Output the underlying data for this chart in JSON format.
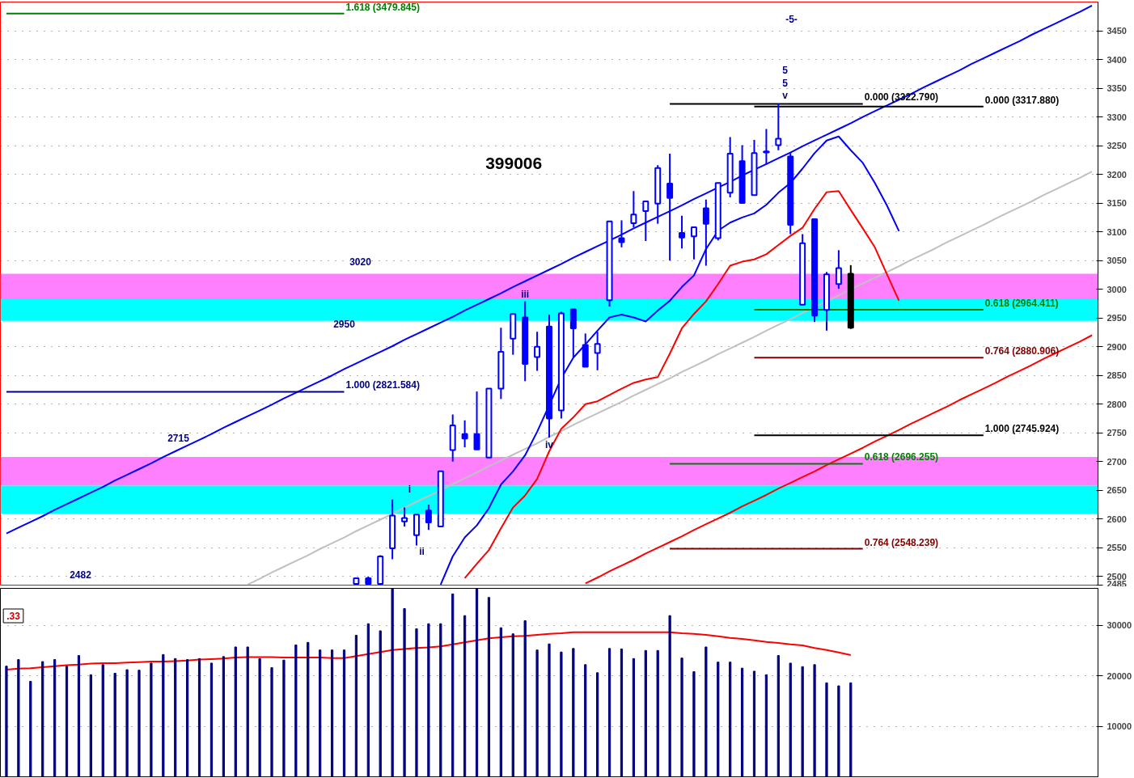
{
  "chart_data": [
    {
      "type": "candlestick",
      "title": "399006",
      "categories": [
        null,
        null,
        null,
        null,
        null,
        null,
        null,
        null,
        null,
        null,
        null,
        null,
        null,
        null,
        null,
        null,
        null,
        null,
        null,
        null,
        null,
        null,
        null,
        null,
        null,
        null,
        null,
        null,
        null,
        null,
        null,
        null,
        null,
        null,
        null,
        null,
        null,
        null,
        null,
        null,
        null,
        null,
        null,
        null,
        null,
        null,
        null,
        null,
        null,
        null,
        null,
        null,
        null,
        null,
        null,
        null,
        null,
        null,
        null,
        null,
        null,
        null,
        null,
        null,
        null,
        null,
        null,
        null,
        null,
        null,
        null,
        null,
        null,
        null,
        null,
        null,
        null,
        null,
        null,
        null,
        null,
        null,
        null,
        null,
        null,
        null,
        null,
        null,
        null,
        null,
        null
      ],
      "ohlc": [
        null,
        null,
        null,
        null,
        null,
        null,
        null,
        null,
        null,
        null,
        null,
        null,
        null,
        null,
        null,
        null,
        null,
        null,
        null,
        null,
        null,
        null,
        null,
        null,
        null,
        null,
        null,
        null,
        null,
        [
          2487,
          2497,
          2486,
          2497
        ],
        [
          2497,
          2500,
          2486,
          2487
        ],
        [
          2487,
          2537,
          2486,
          2535
        ],
        [
          2549,
          2634,
          2530,
          2606
        ],
        [
          2596,
          2620,
          2587,
          2602
        ],
        [
          2572,
          2608,
          2554,
          2608
        ],
        [
          2615,
          2625,
          2581,
          2594
        ],
        [
          2587,
          2683,
          2587,
          2683
        ],
        [
          2720,
          2782,
          2700,
          2763
        ],
        [
          2748,
          2772,
          2725,
          2740
        ],
        [
          2748,
          2822,
          2721,
          2721
        ],
        [
          2707,
          2827,
          2707,
          2827
        ],
        [
          2827,
          2933,
          2809,
          2891
        ],
        [
          2914,
          2957,
          2886,
          2957
        ],
        [
          2951,
          2979,
          2840,
          2870
        ],
        [
          2882,
          2926,
          2858,
          2900
        ],
        [
          2935,
          2956,
          2742,
          2775
        ],
        [
          2789,
          2961,
          2775,
          2958
        ],
        [
          2965,
          2965,
          2881,
          2932
        ],
        [
          2903,
          2923,
          2865,
          2865
        ],
        [
          2889,
          2926,
          2859,
          2905
        ],
        [
          2981,
          3118,
          2970,
          3118
        ],
        [
          3089,
          3120,
          3073,
          3082
        ],
        [
          3115,
          3171,
          3108,
          3130
        ],
        [
          3136,
          3153,
          3084,
          3153
        ],
        [
          3149,
          3216,
          3114,
          3211
        ],
        [
          3184,
          3236,
          3050,
          3159
        ],
        [
          3098,
          3128,
          3071,
          3090
        ],
        [
          3092,
          3109,
          3052,
          3108
        ],
        [
          3141,
          3156,
          3041,
          3114
        ],
        [
          3089,
          3185,
          3085,
          3185
        ],
        [
          3168,
          3265,
          3160,
          3236
        ],
        [
          3223,
          3251,
          3149,
          3150
        ],
        [
          3164,
          3260,
          3164,
          3237
        ],
        [
          3238,
          3279,
          3217,
          3240
        ],
        [
          3251,
          3323,
          3242,
          3262
        ],
        [
          3231,
          3237,
          3096,
          3112
        ],
        [
          2973,
          3096,
          2973,
          3080
        ],
        [
          3122,
          3123,
          2943,
          2954
        ],
        [
          2964,
          3030,
          2928,
          3026
        ],
        [
          3009,
          3068,
          3001,
          3037
        ],
        [
          3027,
          3042,
          2931,
          2933
        ],
        null,
        null,
        null,
        null,
        null,
        null,
        null,
        null,
        null,
        null,
        null,
        null,
        null,
        null,
        null,
        null,
        null,
        null,
        null,
        null
      ],
      "colors": [
        null,
        null,
        null,
        null,
        null,
        null,
        null,
        null,
        null,
        null,
        null,
        null,
        null,
        null,
        null,
        null,
        null,
        null,
        null,
        null,
        null,
        null,
        null,
        null,
        null,
        null,
        null,
        null,
        null,
        "#0000ff",
        "#0000ff",
        "#0000ff",
        "#0000ff",
        "#0000ff",
        "#0000ff",
        "#0000ff",
        "#0000ff",
        "#0000ff",
        "#0000ff",
        "#0000ff",
        "#0000ff",
        "#0000ff",
        "#0000ff",
        "#0000ff",
        "#0000ff",
        "#0000ff",
        "#0000ff",
        "#0000ff",
        "#0000ff",
        "#0000ff",
        "#0000ff",
        "#0000ff",
        "#0000ff",
        "#0000ff",
        "#0000ff",
        "#0000ff",
        "#0000ff",
        "#0000ff",
        "#0000ff",
        "#0000ff",
        "#0000ff",
        "#0000ff",
        "#0000ff",
        "#0000ff",
        "#0000ff",
        "#0000ff",
        "#0000ff",
        "#0000ff",
        "#0000ff",
        "#0000ff",
        "#000000",
        null,
        null,
        null,
        null,
        null,
        null,
        null,
        null,
        null,
        null,
        null,
        null,
        null,
        null,
        null,
        null,
        null,
        null,
        null,
        null
      ],
      "series": [
        {
          "type": "line",
          "color": "#0000ff",
          "values": [
            2575,
            2585,
            2595,
            2605,
            2616,
            2626,
            2636,
            2646,
            2656,
            2667,
            2677,
            2687,
            2697,
            2708,
            2718,
            2728,
            2738,
            2748,
            2759,
            2769,
            2779,
            2789,
            2799,
            2810,
            2820,
            2830,
            2840,
            2850,
            2861,
            2871,
            2881,
            2891,
            2901,
            2912,
            2922,
            2932,
            2942,
            2952,
            2963,
            2973,
            2983,
            2993,
            3004,
            3014,
            3024,
            3034,
            3044,
            3055,
            3065,
            3075,
            3085,
            3095,
            3106,
            3116,
            3126,
            3136,
            3146,
            3157,
            3167,
            3177,
            3187,
            3198,
            3208,
            3218,
            3228,
            3238,
            3249,
            3259,
            3269,
            3279,
            3289,
            3300,
            3310,
            3320,
            3330,
            3340,
            3351,
            3361,
            3371,
            3381,
            3392,
            3402,
            3412,
            3422,
            3432,
            3443,
            3453,
            3463,
            3473,
            3483,
            3494
          ]
        },
        {
          "type": "line",
          "color": "#ff0000",
          "values": [
            null,
            null,
            null,
            null,
            null,
            null,
            null,
            null,
            null,
            null,
            null,
            null,
            null,
            null,
            null,
            null,
            null,
            null,
            null,
            null,
            null,
            null,
            null,
            null,
            null,
            null,
            null,
            null,
            null,
            null,
            null,
            null,
            null,
            null,
            null,
            null,
            null,
            null,
            null,
            null,
            null,
            null,
            null,
            null,
            null,
            null,
            null,
            null,
            2488,
            2498,
            2509,
            2519,
            2529,
            2540,
            2550,
            2560,
            2570,
            2581,
            2591,
            2601,
            2611,
            2622,
            2632,
            2642,
            2653,
            2663,
            2673,
            2683,
            2694,
            2704,
            2714,
            2724,
            2735,
            2745,
            2755,
            2766,
            2776,
            2786,
            2796,
            2807,
            2817,
            2827,
            2837,
            2848,
            2858,
            2868,
            2879,
            2889,
            2899,
            2909,
            2920
          ]
        },
        {
          "type": "line",
          "color": "#c0c0c0",
          "values": [
            null,
            null,
            null,
            null,
            null,
            null,
            null,
            null,
            null,
            null,
            null,
            null,
            null,
            null,
            null,
            null,
            null,
            null,
            null,
            null,
            2486,
            2496,
            2507,
            2517,
            2527,
            2537,
            2548,
            2558,
            2568,
            2579,
            2589,
            2599,
            2609,
            2620,
            2630,
            2640,
            2650,
            2661,
            2671,
            2681,
            2692,
            2702,
            2712,
            2722,
            2732,
            2743,
            2753,
            2764,
            2774,
            2784,
            2794,
            2804,
            2815,
            2825,
            2835,
            2845,
            2856,
            2866,
            2876,
            2887,
            2897,
            2907,
            2917,
            2928,
            2938,
            2948,
            2959,
            2969,
            2979,
            2989,
            3000,
            3010,
            3020,
            3030,
            3040,
            3051,
            3061,
            3071,
            3082,
            3092,
            3102,
            3112,
            3123,
            3133,
            3143,
            3153,
            3164,
            3174,
            3184,
            3194,
            3205
          ]
        },
        {
          "type": "line",
          "color": "#0000ff",
          "values": [
            null,
            null,
            null,
            null,
            null,
            null,
            null,
            null,
            null,
            null,
            null,
            null,
            null,
            null,
            null,
            null,
            null,
            null,
            null,
            null,
            null,
            null,
            null,
            null,
            null,
            null,
            null,
            null,
            null,
            null,
            null,
            null,
            null,
            null,
            null,
            null,
            2486,
            2535,
            2568,
            2589,
            2619,
            2660,
            2683,
            2711,
            2752,
            2798,
            2845,
            2881,
            2904,
            2928,
            2951,
            2956,
            2951,
            2944,
            2963,
            2980,
            3004,
            3024,
            3070,
            3102,
            3116,
            3125,
            3132,
            3147,
            3168,
            3185,
            3210,
            3237,
            3259,
            3266,
            3242,
            3220,
            3185,
            3146,
            3101,
            null,
            null,
            null,
            null,
            null,
            null,
            null,
            null,
            null,
            null,
            null,
            null,
            null,
            null,
            null,
            null
          ]
        },
        {
          "type": "line",
          "color": "#ff0000",
          "values": [
            null,
            null,
            null,
            null,
            null,
            null,
            null,
            null,
            null,
            null,
            null,
            null,
            null,
            null,
            null,
            null,
            null,
            null,
            null,
            null,
            null,
            null,
            null,
            null,
            null,
            null,
            null,
            null,
            null,
            null,
            null,
            null,
            null,
            null,
            null,
            null,
            null,
            null,
            2497,
            2522,
            2546,
            2584,
            2620,
            2641,
            2670,
            2718,
            2757,
            2777,
            2800,
            2805,
            2816,
            2827,
            2837,
            2843,
            2847,
            2888,
            2932,
            2957,
            2979,
            3009,
            3041,
            3048,
            3052,
            3061,
            3077,
            3093,
            3107,
            3140,
            3169,
            3171,
            3138,
            3106,
            3073,
            3026,
            2980,
            null,
            null,
            null,
            null,
            null,
            null,
            null,
            null,
            null,
            null,
            null,
            null,
            null,
            null,
            null,
            null
          ]
        },
        {
          "type": "line",
          "name": "1.618 (3479.845)",
          "color": "#008000",
          "values": [
            3479.845,
            3479.845,
            3479.845,
            3479.845,
            3479.845,
            3479.845,
            3479.845,
            3479.845,
            3479.845,
            3479.845,
            3479.845,
            3479.845,
            3479.845,
            3479.845,
            3479.845,
            3479.845,
            3479.845,
            3479.845,
            3479.845,
            3479.845,
            3479.845,
            3479.845,
            3479.845,
            3479.845,
            3479.845,
            3479.845,
            3479.845,
            3479.845,
            3479.845,
            null,
            null,
            null,
            null,
            null,
            null,
            null,
            null,
            null,
            null,
            null,
            null,
            null,
            null,
            null,
            null,
            null,
            null,
            null,
            null,
            null,
            null,
            null,
            null,
            null,
            null,
            null,
            null,
            null,
            null,
            null,
            null,
            null,
            null,
            null,
            null,
            null,
            null,
            null,
            null,
            null,
            null,
            null,
            null,
            null,
            null,
            null,
            null,
            null,
            null,
            null,
            null,
            null,
            null,
            null,
            null,
            null,
            null,
            null,
            null,
            null,
            null
          ]
        },
        {
          "type": "line",
          "name": "1.000 (2821.584)",
          "color": "#000080",
          "values": [
            2821.584,
            2821.584,
            2821.584,
            2821.584,
            2821.584,
            2821.584,
            2821.584,
            2821.584,
            2821.584,
            2821.584,
            2821.584,
            2821.584,
            2821.584,
            2821.584,
            2821.584,
            2821.584,
            2821.584,
            2821.584,
            2821.584,
            2821.584,
            2821.584,
            2821.584,
            2821.584,
            2821.584,
            2821.584,
            2821.584,
            2821.584,
            2821.584,
            2821.584,
            null,
            null,
            null,
            null,
            null,
            null,
            null,
            null,
            null,
            null,
            null,
            null,
            null,
            null,
            null,
            null,
            null,
            null,
            null,
            null,
            null,
            null,
            null,
            null,
            null,
            null,
            null,
            null,
            null,
            null,
            null,
            null,
            null,
            null,
            null,
            null,
            null,
            null,
            null,
            null,
            null,
            null,
            null,
            null,
            null,
            null,
            null,
            null,
            null,
            null,
            null,
            null,
            null,
            null,
            null,
            null,
            null,
            null,
            null,
            null,
            null,
            null
          ]
        },
        {
          "type": "line",
          "name": "0.000 (3322.790)",
          "color": "#000000",
          "values": [
            null,
            null,
            null,
            null,
            null,
            null,
            null,
            null,
            null,
            null,
            null,
            null,
            null,
            null,
            null,
            null,
            null,
            null,
            null,
            null,
            null,
            null,
            null,
            null,
            null,
            null,
            null,
            null,
            null,
            null,
            null,
            null,
            null,
            null,
            null,
            null,
            null,
            null,
            null,
            null,
            null,
            null,
            null,
            null,
            null,
            null,
            null,
            null,
            null,
            null,
            null,
            null,
            null,
            null,
            null,
            3322.79,
            3322.79,
            3322.79,
            3322.79,
            3322.79,
            3322.79,
            3322.79,
            3322.79,
            3322.79,
            3322.79,
            3322.79,
            3322.79,
            3322.79,
            3322.79,
            3322.79,
            3322.79,
            3322.79,
            null,
            null,
            null,
            null,
            null,
            null,
            null,
            null,
            null,
            null,
            null,
            null,
            null,
            null,
            null,
            null,
            null,
            null,
            null
          ]
        },
        {
          "type": "line",
          "name": "0.618 (2696.255)",
          "color": "#008000",
          "values": [
            null,
            null,
            null,
            null,
            null,
            null,
            null,
            null,
            null,
            null,
            null,
            null,
            null,
            null,
            null,
            null,
            null,
            null,
            null,
            null,
            null,
            null,
            null,
            null,
            null,
            null,
            null,
            null,
            null,
            null,
            null,
            null,
            null,
            null,
            null,
            null,
            null,
            null,
            null,
            null,
            null,
            null,
            null,
            null,
            null,
            null,
            null,
            null,
            null,
            null,
            null,
            null,
            null,
            null,
            null,
            2696.255,
            2696.255,
            2696.255,
            2696.255,
            2696.255,
            2696.255,
            2696.255,
            2696.255,
            2696.255,
            2696.255,
            2696.255,
            2696.255,
            2696.255,
            2696.255,
            2696.255,
            2696.255,
            2696.255,
            null,
            null,
            null,
            null,
            null,
            null,
            null,
            null,
            null,
            null,
            null,
            null,
            null,
            null,
            null,
            null,
            null,
            null,
            null
          ]
        },
        {
          "type": "line",
          "name": "0.764 (2548.239)",
          "color": "#800000",
          "values": [
            null,
            null,
            null,
            null,
            null,
            null,
            null,
            null,
            null,
            null,
            null,
            null,
            null,
            null,
            null,
            null,
            null,
            null,
            null,
            null,
            null,
            null,
            null,
            null,
            null,
            null,
            null,
            null,
            null,
            null,
            null,
            null,
            null,
            null,
            null,
            null,
            null,
            null,
            null,
            null,
            null,
            null,
            null,
            null,
            null,
            null,
            null,
            null,
            null,
            null,
            null,
            null,
            null,
            null,
            null,
            2548.239,
            2548.239,
            2548.239,
            2548.239,
            2548.239,
            2548.239,
            2548.239,
            2548.239,
            2548.239,
            2548.239,
            2548.239,
            2548.239,
            2548.239,
            2548.239,
            2548.239,
            2548.239,
            2548.239,
            null,
            null,
            null,
            null,
            null,
            null,
            null,
            null,
            null,
            null,
            null,
            null,
            null,
            null,
            null,
            null,
            null,
            null,
            null
          ]
        },
        {
          "type": "line",
          "name": "0.000 (3317.880)",
          "color": "#000000",
          "values": [
            null,
            null,
            null,
            null,
            null,
            null,
            null,
            null,
            null,
            null,
            null,
            null,
            null,
            null,
            null,
            null,
            null,
            null,
            null,
            null,
            null,
            null,
            null,
            null,
            null,
            null,
            null,
            null,
            null,
            null,
            null,
            null,
            null,
            null,
            null,
            null,
            null,
            null,
            null,
            null,
            null,
            null,
            null,
            null,
            null,
            null,
            null,
            null,
            null,
            null,
            null,
            null,
            null,
            null,
            null,
            null,
            null,
            null,
            null,
            null,
            null,
            null,
            3317.88,
            3317.88,
            3317.88,
            3317.88,
            3317.88,
            3317.88,
            3317.88,
            3317.88,
            3317.88,
            3317.88,
            3317.88,
            3317.88,
            3317.88,
            3317.88,
            3317.88,
            3317.88,
            3317.88,
            3317.88,
            3317.88,
            3317.88,
            null,
            null,
            null,
            null,
            null,
            null,
            null,
            null,
            null
          ]
        },
        {
          "type": "line",
          "name": "0.618 (2964.411)",
          "color": "#008000",
          "values": [
            null,
            null,
            null,
            null,
            null,
            null,
            null,
            null,
            null,
            null,
            null,
            null,
            null,
            null,
            null,
            null,
            null,
            null,
            null,
            null,
            null,
            null,
            null,
            null,
            null,
            null,
            null,
            null,
            null,
            null,
            null,
            null,
            null,
            null,
            null,
            null,
            null,
            null,
            null,
            null,
            null,
            null,
            null,
            null,
            null,
            null,
            null,
            null,
            null,
            null,
            null,
            null,
            null,
            null,
            null,
            null,
            null,
            null,
            null,
            null,
            null,
            null,
            2964.411,
            2964.411,
            2964.411,
            2964.411,
            2964.411,
            2964.411,
            2964.411,
            2964.411,
            2964.411,
            2964.411,
            2964.411,
            2964.411,
            2964.411,
            2964.411,
            2964.411,
            2964.411,
            2964.411,
            2964.411,
            2964.411,
            2964.411,
            null,
            null,
            null,
            null,
            null,
            null,
            null,
            null,
            null
          ]
        },
        {
          "type": "line",
          "name": "0.764 (2880.906)",
          "color": "#800000",
          "values": [
            null,
            null,
            null,
            null,
            null,
            null,
            null,
            null,
            null,
            null,
            null,
            null,
            null,
            null,
            null,
            null,
            null,
            null,
            null,
            null,
            null,
            null,
            null,
            null,
            null,
            null,
            null,
            null,
            null,
            null,
            null,
            null,
            null,
            null,
            null,
            null,
            null,
            null,
            null,
            null,
            null,
            null,
            null,
            null,
            null,
            null,
            null,
            null,
            null,
            null,
            null,
            null,
            null,
            null,
            null,
            null,
            null,
            null,
            null,
            null,
            null,
            null,
            2880.906,
            2880.906,
            2880.906,
            2880.906,
            2880.906,
            2880.906,
            2880.906,
            2880.906,
            2880.906,
            2880.906,
            2880.906,
            2880.906,
            2880.906,
            2880.906,
            2880.906,
            2880.906,
            2880.906,
            2880.906,
            2880.906,
            2880.906,
            null,
            null,
            null,
            null,
            null,
            null,
            null,
            null,
            null
          ]
        },
        {
          "type": "line",
          "name": "1.000 (2745.924)",
          "color": "#000000",
          "values": [
            null,
            null,
            null,
            null,
            null,
            null,
            null,
            null,
            null,
            null,
            null,
            null,
            null,
            null,
            null,
            null,
            null,
            null,
            null,
            null,
            null,
            null,
            null,
            null,
            null,
            null,
            null,
            null,
            null,
            null,
            null,
            null,
            null,
            null,
            null,
            null,
            null,
            null,
            null,
            null,
            null,
            null,
            null,
            null,
            null,
            null,
            null,
            null,
            null,
            null,
            null,
            null,
            null,
            null,
            null,
            null,
            null,
            null,
            null,
            null,
            null,
            null,
            2745.924,
            2745.924,
            2745.924,
            2745.924,
            2745.924,
            2745.924,
            2745.924,
            2745.924,
            2745.924,
            2745.924,
            2745.924,
            2745.924,
            2745.924,
            2745.924,
            2745.924,
            2745.924,
            2745.924,
            2745.924,
            2745.924,
            2745.924,
            null,
            null,
            null,
            null,
            null,
            null,
            null,
            null,
            null
          ]
        }
      ],
      "bands": [
        {
          "axis": "y",
          "from": 2984,
          "to": 3027,
          "color": "#ff80ff"
        },
        {
          "axis": "y",
          "from": 2945,
          "to": 2984,
          "color": "#00ffff"
        },
        {
          "axis": "y",
          "from": 2658,
          "to": 2708,
          "color": "#ff80ff"
        },
        {
          "axis": "y",
          "from": 2609,
          "to": 2658,
          "color": "#00ffff"
        }
      ],
      "annotations": [
        "3020",
        {
          "text": "2950",
          "y": 2940
        },
        "2715",
        "2482",
        "i",
        "ii",
        {
          "text": "iii",
          "y": 2991
        },
        {
          "text": "iv",
          "y": 2729
        },
        "5",
        "5",
        "v",
        "-5-"
      ],
      "ylim": [
        2485,
        3500
      ],
      "yticks": [
        {
          "value": 2485,
          "label": "2485"
        },
        2500,
        2550,
        2600,
        2650,
        2700,
        2750,
        2800,
        2850,
        2900,
        2950,
        3000,
        3050,
        3100,
        3150,
        3200,
        3250,
        3300,
        3350,
        3400,
        3450
      ],
      "tick_labels": "y",
      "grid": true
    },
    {
      "type": "bar",
      "color": "#000080",
      "categories": [
        null,
        null,
        null,
        null,
        null,
        null,
        null,
        null,
        null,
        null,
        null,
        null,
        null,
        null,
        null,
        null,
        null,
        null,
        null,
        null,
        null,
        null,
        null,
        null,
        null,
        null,
        null,
        null,
        null,
        null,
        null,
        null,
        null,
        null,
        null,
        null,
        null,
        null,
        null,
        null,
        null,
        null,
        null,
        null,
        null,
        null,
        null,
        null,
        null,
        null,
        null,
        null,
        null,
        null,
        null,
        null,
        null,
        null,
        null,
        null,
        null,
        null,
        null,
        null,
        null,
        null,
        null,
        null,
        null,
        null,
        null,
        null,
        null,
        null,
        null,
        null,
        null,
        null,
        null,
        null,
        null,
        null,
        null,
        null,
        null,
        null,
        null,
        null,
        null,
        null,
        null
      ],
      "values": [
        21900,
        23200,
        18900,
        22800,
        23200,
        21900,
        24000,
        20200,
        22200,
        20500,
        21200,
        21100,
        22500,
        24200,
        23400,
        23200,
        23400,
        22500,
        23800,
        25700,
        25700,
        23400,
        21600,
        23100,
        26100,
        26600,
        25100,
        25100,
        25100,
        28000,
        30300,
        28900,
        37200,
        33300,
        29300,
        30300,
        30300,
        36200,
        31900,
        37200,
        35500,
        29500,
        28300,
        30900,
        25100,
        26300,
        24700,
        25400,
        22200,
        20600,
        25400,
        25300,
        23400,
        25000,
        25000,
        31900,
        23500,
        20800,
        25700,
        22700,
        22700,
        21500,
        20900,
        20200,
        24000,
        22500,
        21800,
        22200,
        18600,
        18000,
        18600,
        null,
        null,
        null,
        null,
        null,
        null,
        null,
        null,
        null,
        null,
        null,
        null,
        null,
        null,
        null,
        null,
        null,
        null,
        null,
        null
      ],
      "series": [
        {
          "type": "line",
          "color": "#ff0000",
          "values": [
            21200,
            21400,
            21500,
            21700,
            21900,
            22100,
            22200,
            22400,
            22500,
            22500,
            22600,
            22700,
            22800,
            22800,
            22900,
            23000,
            23200,
            23300,
            23400,
            23600,
            23700,
            23700,
            23700,
            23600,
            23600,
            23600,
            23600,
            23500,
            23500,
            23900,
            24300,
            24700,
            25100,
            25300,
            25500,
            25600,
            25800,
            26200,
            26600,
            27000,
            27400,
            27600,
            27800,
            27900,
            28100,
            28300,
            28400,
            28600,
            28600,
            28600,
            28600,
            28600,
            28600,
            28600,
            28600,
            28600,
            28400,
            28300,
            28100,
            27800,
            27500,
            27300,
            27000,
            26700,
            26500,
            26200,
            26000,
            25500,
            25100,
            24600,
            24100,
            null,
            null,
            null,
            null,
            null,
            null,
            null,
            null,
            null,
            null,
            null,
            null,
            null,
            null,
            null,
            null,
            null,
            null,
            null,
            null
          ]
        }
      ],
      "annotations": [
        ".33"
      ],
      "ylim": [
        0,
        37300
      ],
      "yticks": [
        10000,
        20000,
        30000
      ],
      "tick_labels": "y",
      "grid": true
    }
  ]
}
